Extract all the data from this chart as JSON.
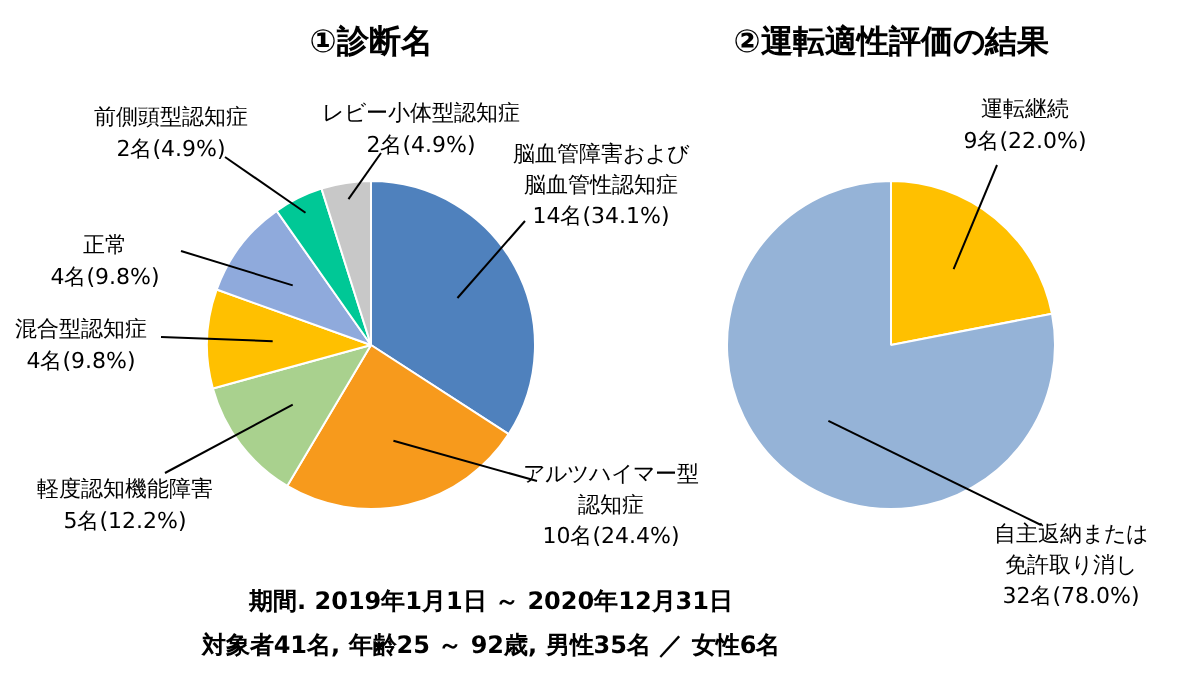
{
  "chart_data": [
    {
      "type": "pie",
      "title": "①診断名",
      "categories": [
        "脳血管障害および脳血管性認知症",
        "アルツハイマー型認知症",
        "軽度認知機能障害",
        "混合型認知症",
        "正常",
        "前側頭型認知症",
        "レビー小体型認知症"
      ],
      "values": [
        14,
        10,
        5,
        4,
        4,
        2,
        2
      ],
      "colors": [
        "#4f81bd",
        "#f79a1c",
        "#a9d18e",
        "#ffc000",
        "#8faadc",
        "#00c896",
        "#c8c8c8"
      ],
      "value_labels": [
        "14名(34.1%)",
        "10名(24.4%)",
        "5名(12.2%)",
        "4名(9.8%)",
        "4名(9.8%)",
        "2名(4.9%)",
        "2名(4.9%)"
      ],
      "annotations": [
        "期間. 2019年1月1日 ～ 2020年12月31日",
        "対象者41名, 年齢25 ～ 92歳, 男性35名 ／ 女性6名"
      ]
    },
    {
      "type": "pie",
      "title": "②運転適性評価の結果",
      "categories": [
        "運転継続",
        "自主返納または免許取り消し"
      ],
      "values": [
        9,
        32
      ],
      "colors": [
        "#ffc000",
        "#95b3d7"
      ],
      "value_labels": [
        "9名(22.0%)",
        "32名(78.0%)"
      ]
    }
  ]
}
